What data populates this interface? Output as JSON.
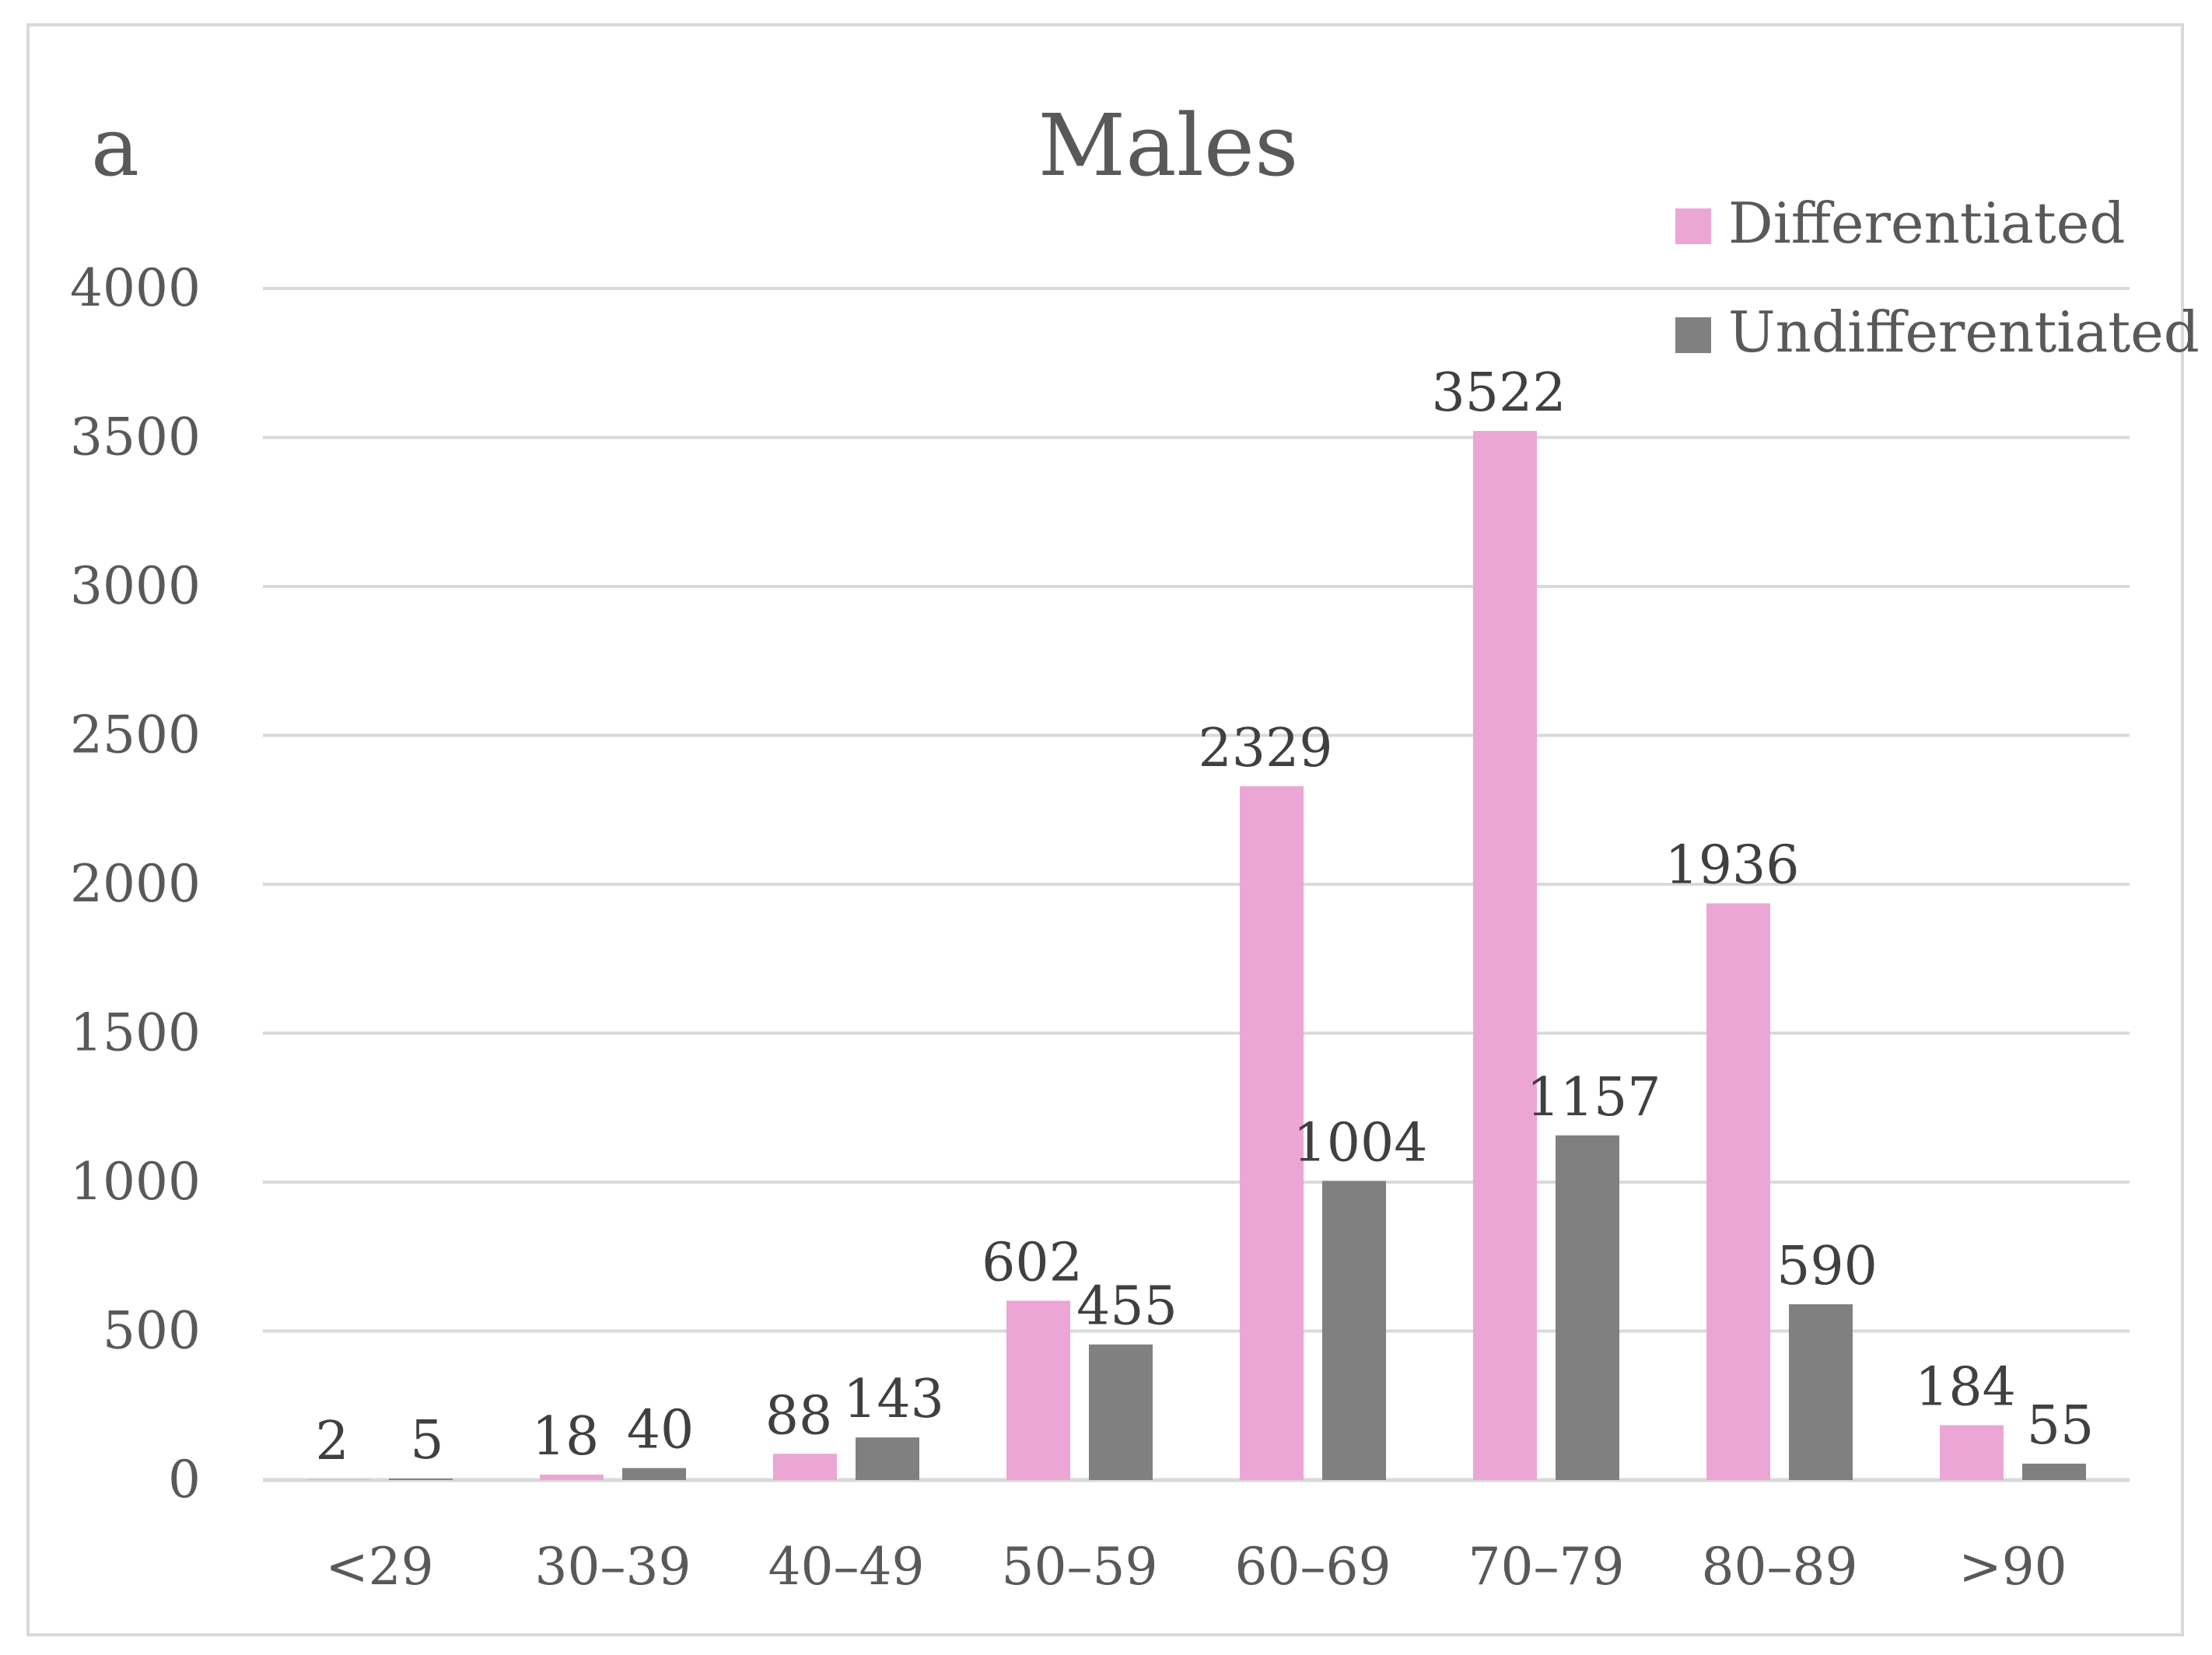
{
  "chart_data": {
    "type": "bar",
    "panel_label": "a",
    "title": "Males",
    "xlabel": "",
    "ylabel": "",
    "ylim": [
      0,
      4000
    ],
    "yticks": [
      0,
      500,
      1000,
      1500,
      2000,
      2500,
      3000,
      3500,
      4000
    ],
    "grid": true,
    "legend_position": "top-right",
    "categories": [
      "<29",
      "30–39",
      "40–49",
      "50–59",
      "60–69",
      "70–79",
      "80–89",
      ">90"
    ],
    "series": [
      {
        "name": "Differentiated",
        "color": "#eca6d6",
        "values": [
          2,
          18,
          88,
          602,
          2329,
          3522,
          1936,
          184
        ]
      },
      {
        "name": "Undifferentiated",
        "color": "#808080",
        "values": [
          5,
          40,
          143,
          455,
          1004,
          1157,
          590,
          55
        ]
      }
    ]
  }
}
